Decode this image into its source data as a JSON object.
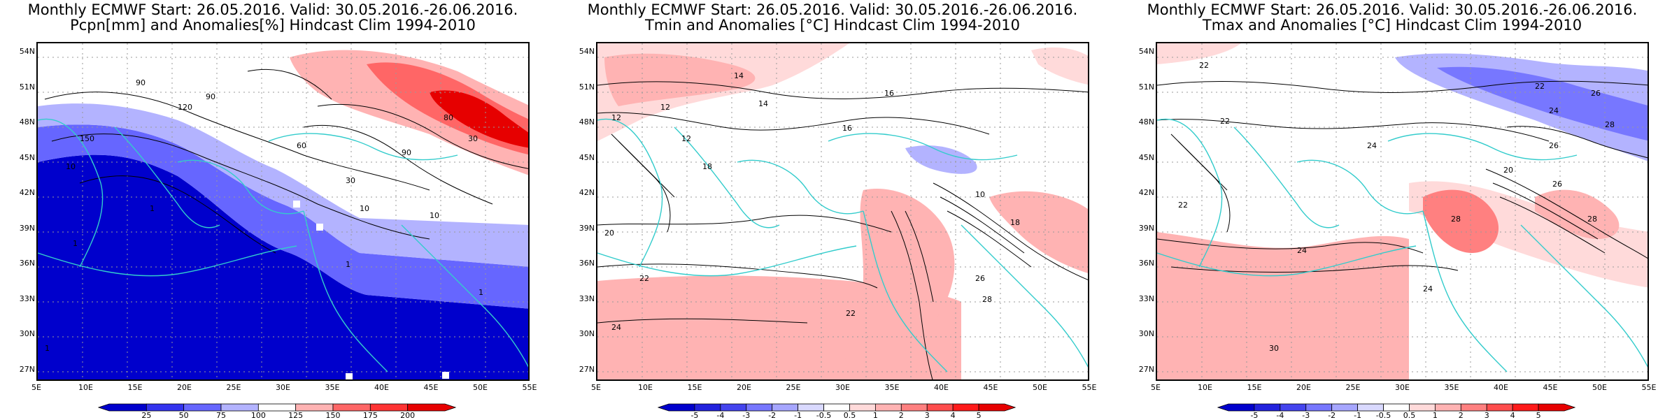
{
  "colors": {
    "strong_red": "#e60000",
    "mid_red": "#ff6666",
    "light_red": "#ffb3b3",
    "pale_red": "#ffdada",
    "strong_blue": "#0000cc",
    "mid_blue": "#6666ff",
    "light_blue": "#b3b3ff",
    "coast": "#33cccc"
  },
  "lat_labels": [
    "54N",
    "51N",
    "48N",
    "45N",
    "42N",
    "39N",
    "36N",
    "33N",
    "30N",
    "27N"
  ],
  "lon_labels": [
    "5E",
    "10E",
    "15E",
    "20E",
    "25E",
    "30E",
    "35E",
    "40E",
    "45E",
    "50E",
    "55E"
  ],
  "panels": [
    {
      "title_line1": "Monthly ECMWF Start: 26.05.2016. Valid: 30.05.2016.-26.06.2016.",
      "title_line2": "Pcpn[mm] and Anomalies[%] Hindcast Clim 1994-2010",
      "colorbar_labels": [
        "25",
        "50",
        "75",
        "100",
        "125",
        "150",
        "175",
        "200"
      ],
      "colorbar_colors": [
        "#0000cc",
        "#3333ee",
        "#6666ff",
        "#b3b3ff",
        "#ffffff",
        "#ffb3b3",
        "#ff6666",
        "#ff3333",
        "#e60000"
      ],
      "contour_labels": [
        "90",
        "90",
        "120",
        "150",
        "60",
        "80",
        "30",
        "90",
        "10",
        "10",
        "30",
        "1",
        "1",
        "10",
        "1",
        "1",
        "1"
      ]
    },
    {
      "title_line1": "Monthly ECMWF Start: 26.05.2016. Valid: 30.05.2016.-26.06.2016.",
      "title_line2": "Tmin and Anomalies [°C] Hindcast Clim 1994-2010",
      "colorbar_labels": [
        "-5",
        "-4",
        "-3",
        "-2",
        "-1",
        "-0.5",
        "0.5",
        "1",
        "2",
        "3",
        "4",
        "5"
      ],
      "colorbar_colors": [
        "#0000cc",
        "#2222dd",
        "#4444ee",
        "#7777ff",
        "#a6a6ff",
        "#d9d9ff",
        "#ffffff",
        "#ffdada",
        "#ffb3b3",
        "#ff8080",
        "#ff4d4d",
        "#ff1a1a",
        "#e60000"
      ],
      "contour_labels": [
        "14",
        "12",
        "12",
        "14",
        "16",
        "18",
        "20",
        "22",
        "22",
        "24",
        "26",
        "28",
        "16",
        "12",
        "10",
        "18"
      ]
    },
    {
      "title_line1": "Monthly ECMWF Start: 26.05.2016. Valid: 30.05.2016.-26.06.2016.",
      "title_line2": "Tmax and Anomalies [°C] Hindcast Clim 1994-2010",
      "colorbar_labels": [
        "-5",
        "-4",
        "-3",
        "-2",
        "-1",
        "-0.5",
        "0.5",
        "1",
        "2",
        "3",
        "4",
        "5"
      ],
      "colorbar_colors": [
        "#0000cc",
        "#2222dd",
        "#4444ee",
        "#7777ff",
        "#a6a6ff",
        "#d9d9ff",
        "#ffffff",
        "#ffdada",
        "#ffb3b3",
        "#ff8080",
        "#ff4d4d",
        "#ff1a1a",
        "#e60000"
      ],
      "contour_labels": [
        "22",
        "22",
        "24",
        "26",
        "28",
        "24",
        "22",
        "28",
        "26",
        "24",
        "30",
        "20",
        "22",
        "24",
        "28",
        "26"
      ]
    }
  ]
}
